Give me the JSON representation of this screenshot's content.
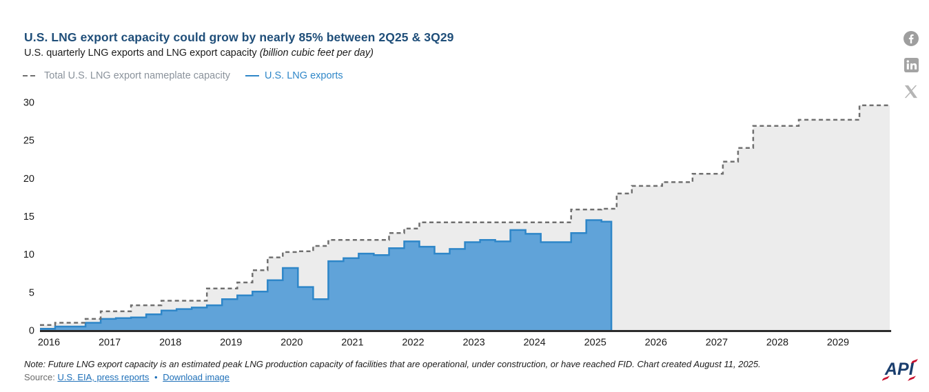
{
  "header": {
    "title": "U.S. LNG export capacity could grow by nearly 85% between 2Q25 & 3Q29",
    "subtitle": "U.S. quarterly LNG exports and LNG export capacity ",
    "subtitle_unit": "(billion cubic feet per day)"
  },
  "legend": [
    {
      "label": "Total U.S. LNG export nameplate capacity"
    },
    {
      "label": "U.S. LNG exports"
    }
  ],
  "social": [
    "facebook",
    "linkedin",
    "x"
  ],
  "footer": {
    "note": "Note: Future LNG export capacity is an estimated peak LNG production capacity of facilities that are operational, under construction, or have reached FID. Chart created August 11, 2025.",
    "source_label": "Source:",
    "source_link": "U.S. EIA, press reports",
    "separator": "•",
    "download_link": "Download image",
    "logo_text": "API"
  },
  "colors": {
    "title": "#1f4e79",
    "capacity_fill": "#ececec",
    "capacity_stroke": "#6f6f6f",
    "exports_fill": "#60a3d9",
    "exports_stroke": "#2e86c8",
    "axis_line": "#2b2b2b",
    "tick_text": "#1a1a1a",
    "icon_gray": "#9e9e9e"
  },
  "chart_data": {
    "type": "area",
    "subtype": "quarterly-step",
    "title": "U.S. quarterly LNG exports and LNG export capacity (billion cubic feet per day)",
    "xlabel": "",
    "ylabel": "billion cubic feet per day",
    "years": [
      2016,
      2017,
      2018,
      2019,
      2020,
      2021,
      2022,
      2023,
      2024,
      2025,
      2026,
      2027,
      2028,
      2029
    ],
    "yticks": [
      0,
      5,
      10,
      15,
      20,
      25,
      30
    ],
    "ylim": [
      0,
      30
    ],
    "grid": false,
    "legend_position": "top-left",
    "x_start": "2016 Q1",
    "x_end": "2029 Q4",
    "series": [
      {
        "name": "Total U.S. LNG export nameplate capacity",
        "style": "dashed-step-area",
        "first_quarter": "2016 Q1",
        "values": [
          0.7,
          1.0,
          1.0,
          1.5,
          2.5,
          2.5,
          3.3,
          3.3,
          3.9,
          3.9,
          3.9,
          5.5,
          5.5,
          6.3,
          7.9,
          9.6,
          10.3,
          10.4,
          11.1,
          11.9,
          11.9,
          11.9,
          11.9,
          12.8,
          13.4,
          14.2,
          14.2,
          14.2,
          14.2,
          14.2,
          14.2,
          14.2,
          14.2,
          14.2,
          14.2,
          15.9,
          15.9,
          16.0,
          18.0,
          19.0,
          19.0,
          19.5,
          19.5,
          20.6,
          20.6,
          22.2,
          24.0,
          26.9,
          26.9,
          26.9,
          27.7,
          27.7,
          27.7,
          27.7,
          29.6,
          29.6
        ]
      },
      {
        "name": "U.S. LNG exports",
        "style": "solid-step-area",
        "first_quarter": "2016 Q1",
        "last_quarter_fraction": 0.65,
        "values": [
          0.2,
          0.5,
          0.5,
          1.0,
          1.5,
          1.6,
          1.7,
          2.1,
          2.6,
          2.8,
          3.0,
          3.3,
          4.1,
          4.6,
          5.1,
          6.6,
          8.2,
          5.7,
          4.1,
          9.1,
          9.5,
          10.1,
          9.9,
          10.8,
          11.7,
          11.0,
          10.1,
          10.7,
          11.6,
          11.9,
          11.7,
          13.2,
          12.7,
          11.6,
          11.6,
          12.8,
          14.5,
          14.3
        ]
      }
    ]
  }
}
